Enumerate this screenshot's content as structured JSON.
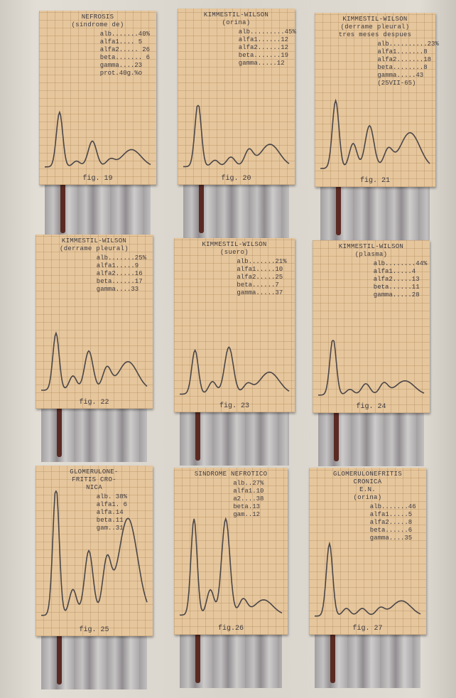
{
  "cards": [
    {
      "title": [
        "NEFROSIS",
        "(síndrome de)"
      ],
      "lines": [
        "alb.......40%",
        "alfa1.... 5",
        "alfa2..... 26",
        "beta....... 6",
        "gamma....23",
        "prot.40g.%o"
      ],
      "fig": "fig. 19"
    },
    {
      "title": [
        "KIMMESTIL-WILSON",
        "(orina)"
      ],
      "lines": [
        "alb.........45%",
        "alfa1......12",
        "alfa2......12",
        "beta.......19",
        "gamma.....12"
      ],
      "fig": "fig. 20"
    },
    {
      "title": [
        "KIMMESTIL-WILSON",
        "(derrame pleural)",
        "tres meses despues"
      ],
      "lines": [
        "alb..........23%",
        "alfa1.......8",
        "alfa2.......18",
        "beta........8",
        "gamma.....43",
        "(25VII-65)"
      ],
      "fig": "fig. 21"
    },
    {
      "title": [
        "KIMMESTIL-WILSON",
        "(derrame pleural)"
      ],
      "lines": [
        "alb.......25%",
        "alfa1.....9",
        "alfa2.....16",
        "beta......17",
        "gamma....33"
      ],
      "fig": "fig. 22"
    },
    {
      "title": [
        "KIMMESTIL-WILSON",
        "(suero)"
      ],
      "lines": [
        "alb.......21%",
        "alfa1.....10",
        "alfa2.....25",
        "beta......7",
        "gamma.....37"
      ],
      "fig": "fig. 23"
    },
    {
      "title": [
        "KIMMESTIL-WILSON",
        "(plasma)"
      ],
      "lines": [
        "alb........44%",
        "alfa1.....4",
        "alfa2.....13",
        "beta......11",
        "gamma.....28"
      ],
      "fig": "fig. 24"
    },
    {
      "title": [
        "GLOMERULONE-",
        "FRITIS CRO-",
        "NICA"
      ],
      "lines": [
        "alb. 38%",
        "alfa1. 6",
        "alfa.14",
        "beta.11",
        "gam..31"
      ],
      "fig": "fig. 25"
    },
    {
      "title": [
        "SINDROME NEFROTICO"
      ],
      "lines": [
        "alb..27%",
        "alfa1.10",
        "a2....38",
        "beta.13",
        "gam..12"
      ],
      "fig": "fig.26"
    },
    {
      "title": [
        "GLOMERULONEFRITIS",
        "CRONICA",
        "E.N.",
        "(orina)"
      ],
      "lines": [
        "alb.......46",
        "alfa1.....5",
        "alfa2.....8",
        "beta......6",
        "gamma....35"
      ],
      "fig": "fig. 27"
    }
  ]
}
